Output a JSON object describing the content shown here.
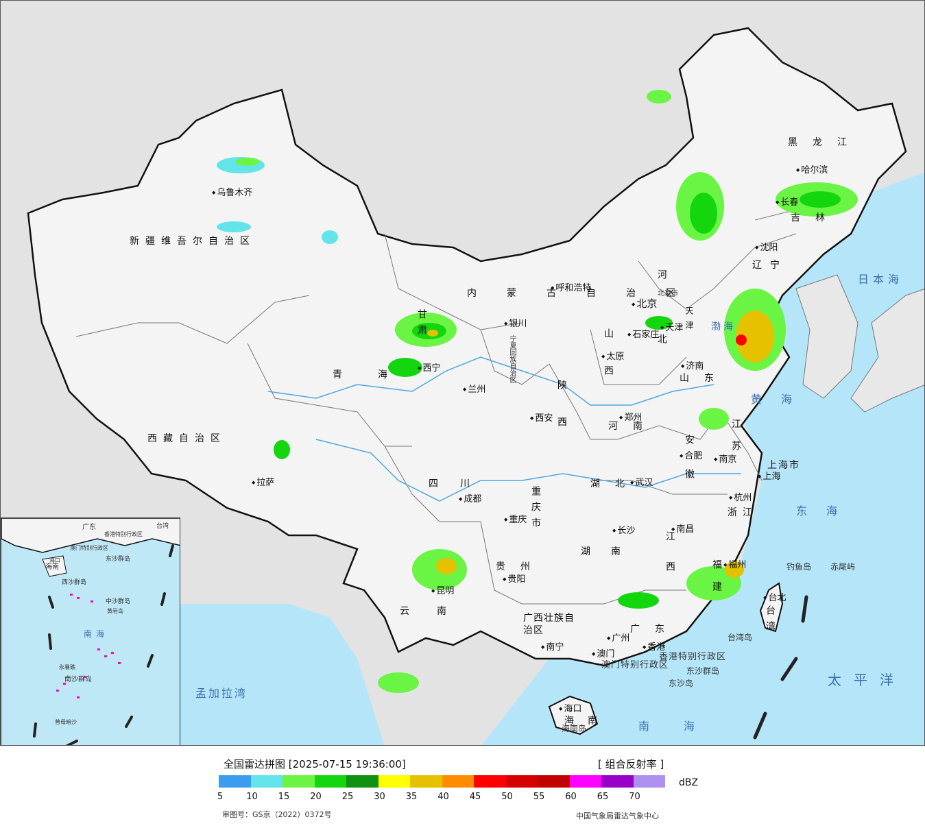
{
  "map": {
    "provinces": [
      {
        "id": "xinjiang",
        "label": "新疆维吾尔自治区"
      },
      {
        "id": "xizang",
        "label": "西藏自治区"
      },
      {
        "id": "qinghai",
        "label": "青海"
      },
      {
        "id": "gansu",
        "label": "甘肃"
      },
      {
        "id": "neimenggu",
        "label": "内蒙古自治区"
      },
      {
        "id": "ningxia",
        "label": "宁夏回族自治区"
      },
      {
        "id": "sichuan",
        "label": "四川"
      },
      {
        "id": "yunnan",
        "label": "云南"
      },
      {
        "id": "guizhou",
        "label": "贵州"
      },
      {
        "id": "chongqing",
        "label": "重庆市"
      },
      {
        "id": "shaanxi",
        "label": "陕西"
      },
      {
        "id": "shanxi",
        "label": "山西"
      },
      {
        "id": "hebei",
        "label": "河北"
      },
      {
        "id": "beijing",
        "label": "北京市"
      },
      {
        "id": "tianjin",
        "label": "天津"
      },
      {
        "id": "shandong",
        "label": "山东"
      },
      {
        "id": "henan",
        "label": "河南"
      },
      {
        "id": "hubei",
        "label": "湖北"
      },
      {
        "id": "hunan",
        "label": "湖南"
      },
      {
        "id": "jiangxi",
        "label": "江西"
      },
      {
        "id": "anhui",
        "label": "安徽"
      },
      {
        "id": "jiangsu",
        "label": "江苏"
      },
      {
        "id": "shanghai",
        "label": "上海市"
      },
      {
        "id": "zhejiang",
        "label": "浙江"
      },
      {
        "id": "fujian",
        "label": "福建"
      },
      {
        "id": "guangdong",
        "label": "广东"
      },
      {
        "id": "guangxi",
        "label": "广西壮族自治区"
      },
      {
        "id": "hainan",
        "label": "海南"
      },
      {
        "id": "liaoning",
        "label": "辽宁"
      },
      {
        "id": "jilin",
        "label": "吉林"
      },
      {
        "id": "heilongjiang",
        "label": "黑龙江"
      },
      {
        "id": "taiwan",
        "label": "台湾"
      },
      {
        "id": "hongkong",
        "label": "香港特别行政区"
      },
      {
        "id": "macau",
        "label": "澳门特别行政区"
      }
    ],
    "cities": [
      {
        "id": "urumqi",
        "label": "乌鲁木齐"
      },
      {
        "id": "lhasa",
        "label": "拉萨"
      },
      {
        "id": "xining",
        "label": "西宁"
      },
      {
        "id": "lanzhou",
        "label": "兰州"
      },
      {
        "id": "yinchuan",
        "label": "银川"
      },
      {
        "id": "hohhot",
        "label": "呼和浩特"
      },
      {
        "id": "beijing",
        "label": "北京"
      },
      {
        "id": "tianjin",
        "label": "天津"
      },
      {
        "id": "shijiazhuang",
        "label": "石家庄"
      },
      {
        "id": "taiyuan",
        "label": "太原"
      },
      {
        "id": "jinan",
        "label": "济南"
      },
      {
        "id": "zhengzhou",
        "label": "郑州"
      },
      {
        "id": "xian",
        "label": "西安"
      },
      {
        "id": "chengdu",
        "label": "成都"
      },
      {
        "id": "chongqing",
        "label": "重庆"
      },
      {
        "id": "kunming",
        "label": "昆明"
      },
      {
        "id": "guiyang",
        "label": "贵阳"
      },
      {
        "id": "wuhan",
        "label": "武汉"
      },
      {
        "id": "changsha",
        "label": "长沙"
      },
      {
        "id": "nanchang",
        "label": "南昌"
      },
      {
        "id": "hefei",
        "label": "合肥"
      },
      {
        "id": "nanjing",
        "label": "南京"
      },
      {
        "id": "shanghai",
        "label": "上海"
      },
      {
        "id": "hangzhou",
        "label": "杭州"
      },
      {
        "id": "fuzhou",
        "label": "福州"
      },
      {
        "id": "guangzhou",
        "label": "广州"
      },
      {
        "id": "nanning",
        "label": "南宁"
      },
      {
        "id": "haikou",
        "label": "海口"
      },
      {
        "id": "shenyang",
        "label": "沈阳"
      },
      {
        "id": "changchun",
        "label": "长春"
      },
      {
        "id": "harbin",
        "label": "哈尔滨"
      },
      {
        "id": "taibei",
        "label": "台北"
      },
      {
        "id": "hongkong",
        "label": "香港"
      },
      {
        "id": "macau",
        "label": "澳门"
      }
    ],
    "seas": [
      {
        "id": "bohai",
        "label": "渤海"
      },
      {
        "id": "huanghai",
        "label": "黄海"
      },
      {
        "id": "donghai",
        "label": "东海"
      },
      {
        "id": "nanhai",
        "label": "南海"
      },
      {
        "id": "riben",
        "label": "日本海"
      },
      {
        "id": "taipingyang",
        "label": "太平洋"
      },
      {
        "id": "mengjiala",
        "label": "孟加拉湾"
      }
    ],
    "islands": [
      {
        "id": "diaoyu",
        "label": "钓鱼岛"
      },
      {
        "id": "chiwei",
        "label": "赤尾屿"
      },
      {
        "id": "dongsha-qundao",
        "label": "东沙群岛"
      },
      {
        "id": "dongsha-dao",
        "label": "东沙岛"
      },
      {
        "id": "taiwan-dao",
        "label": "台湾岛"
      },
      {
        "id": "hainan-dao",
        "label": "海南岛"
      }
    ],
    "inset": {
      "labels": [
        "海南",
        "南海",
        "西沙群岛",
        "中沙群岛",
        "南沙群岛",
        "东沙群岛",
        "广东",
        "台湾",
        "香港特别行政区",
        "澳门特别行政区",
        "海口",
        "永暑礁",
        "曾母暗沙",
        "黄岩岛"
      ]
    }
  },
  "colors": {
    "ocean": "#b4e5f8",
    "land": "#f4f4f4",
    "outside": "#e3e3e3",
    "border": "#111111"
  },
  "legend": {
    "title": "全国雷达拼图 [2025-07-15 19:36:00]",
    "product": "[ 组合反射率 ]",
    "unit": "dBZ",
    "colors": [
      "#3c9cf0",
      "#63e3ea",
      "#6af544",
      "#14d60f",
      "#109110",
      "#ffff00",
      "#e5c100",
      "#ff8c00",
      "#ff0000",
      "#d70000",
      "#c20000",
      "#ff00ff",
      "#9900c8",
      "#ad90f0"
    ],
    "ticks": [
      "5",
      "10",
      "15",
      "20",
      "25",
      "30",
      "35",
      "40",
      "45",
      "50",
      "55",
      "60",
      "65",
      "70"
    ],
    "approval": "审图号：GS京（2022）0372号",
    "source": "中国气象局雷达气象中心"
  }
}
